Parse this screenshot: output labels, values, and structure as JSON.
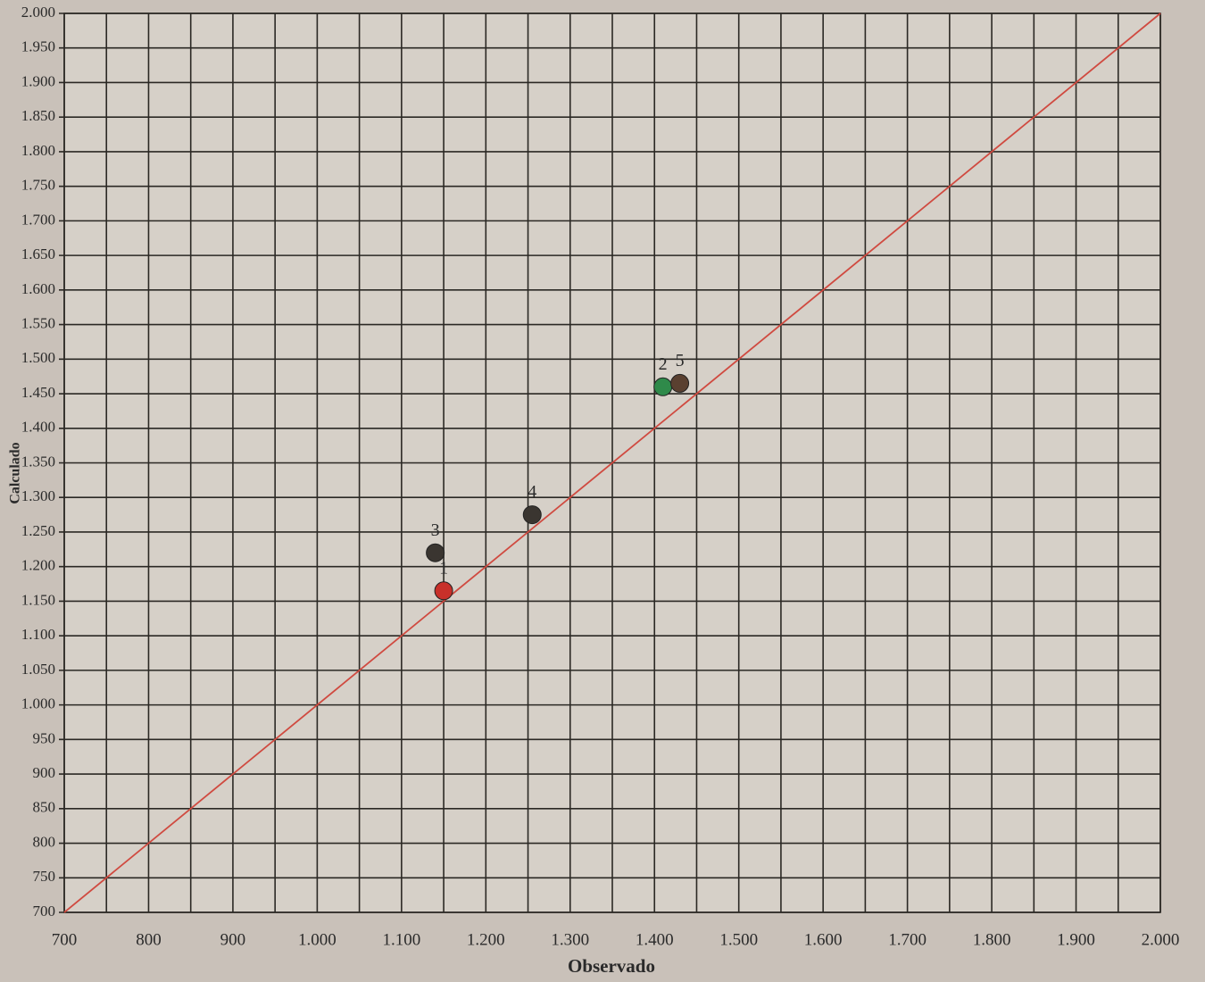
{
  "chart_data": {
    "type": "scatter",
    "x_label": "Observado",
    "y_label": "Calculado",
    "x": [
      1150,
      1410,
      1140,
      1255,
      1430
    ],
    "values": [
      1165,
      1460,
      1220,
      1275,
      1465
    ],
    "labels": [
      "1",
      "2",
      "3",
      "4",
      "5"
    ],
    "colors": [
      "#c8302a",
      "#2f8a4a",
      "#3a3530",
      "#3a3530",
      "#5a4030"
    ],
    "xlim": [
      700,
      2000
    ],
    "ylim": [
      700,
      2000
    ],
    "xticks": [
      700,
      800,
      900,
      {
        "value": 1000,
        "label": "1.000"
      },
      {
        "value": 1100,
        "label": "1.100"
      },
      {
        "value": 1200,
        "label": "1.200"
      },
      {
        "value": 1300,
        "label": "1.300"
      },
      {
        "value": 1400,
        "label": "1.400"
      },
      {
        "value": 1500,
        "label": "1.500"
      },
      {
        "value": 1600,
        "label": "1.600"
      },
      {
        "value": 1700,
        "label": "1.700"
      },
      {
        "value": 1800,
        "label": "1.800"
      },
      {
        "value": 1900,
        "label": "1.900"
      },
      {
        "value": 2000,
        "label": "2.000"
      }
    ],
    "yticks": [
      700,
      750,
      800,
      850,
      900,
      950,
      {
        "value": 1000,
        "label": "1.000"
      },
      {
        "value": 1050,
        "label": "1.050"
      },
      {
        "value": 1100,
        "label": "1.100"
      },
      {
        "value": 1150,
        "label": "1.150"
      },
      {
        "value": 1200,
        "label": "1.200"
      },
      {
        "value": 1250,
        "label": "1.250"
      },
      {
        "value": 1300,
        "label": "1.300"
      },
      {
        "value": 1350,
        "label": "1.350"
      },
      {
        "value": 1400,
        "label": "1.400"
      },
      {
        "value": 1450,
        "label": "1.450"
      },
      {
        "value": 1500,
        "label": "1.500"
      },
      {
        "value": 1550,
        "label": "1.550"
      },
      {
        "value": 1600,
        "label": "1.600"
      },
      {
        "value": 1650,
        "label": "1.650"
      },
      {
        "value": 1700,
        "label": "1.700"
      },
      {
        "value": 1750,
        "label": "1.750"
      },
      {
        "value": 1800,
        "label": "1.800"
      },
      {
        "value": 1850,
        "label": "1.850"
      },
      {
        "value": 1900,
        "label": "1.900"
      },
      {
        "value": 1950,
        "label": "1.950"
      },
      {
        "value": 2000,
        "label": "2.000"
      }
    ],
    "grid": true,
    "identity_line": true,
    "identity_color": "#d04a40"
  }
}
